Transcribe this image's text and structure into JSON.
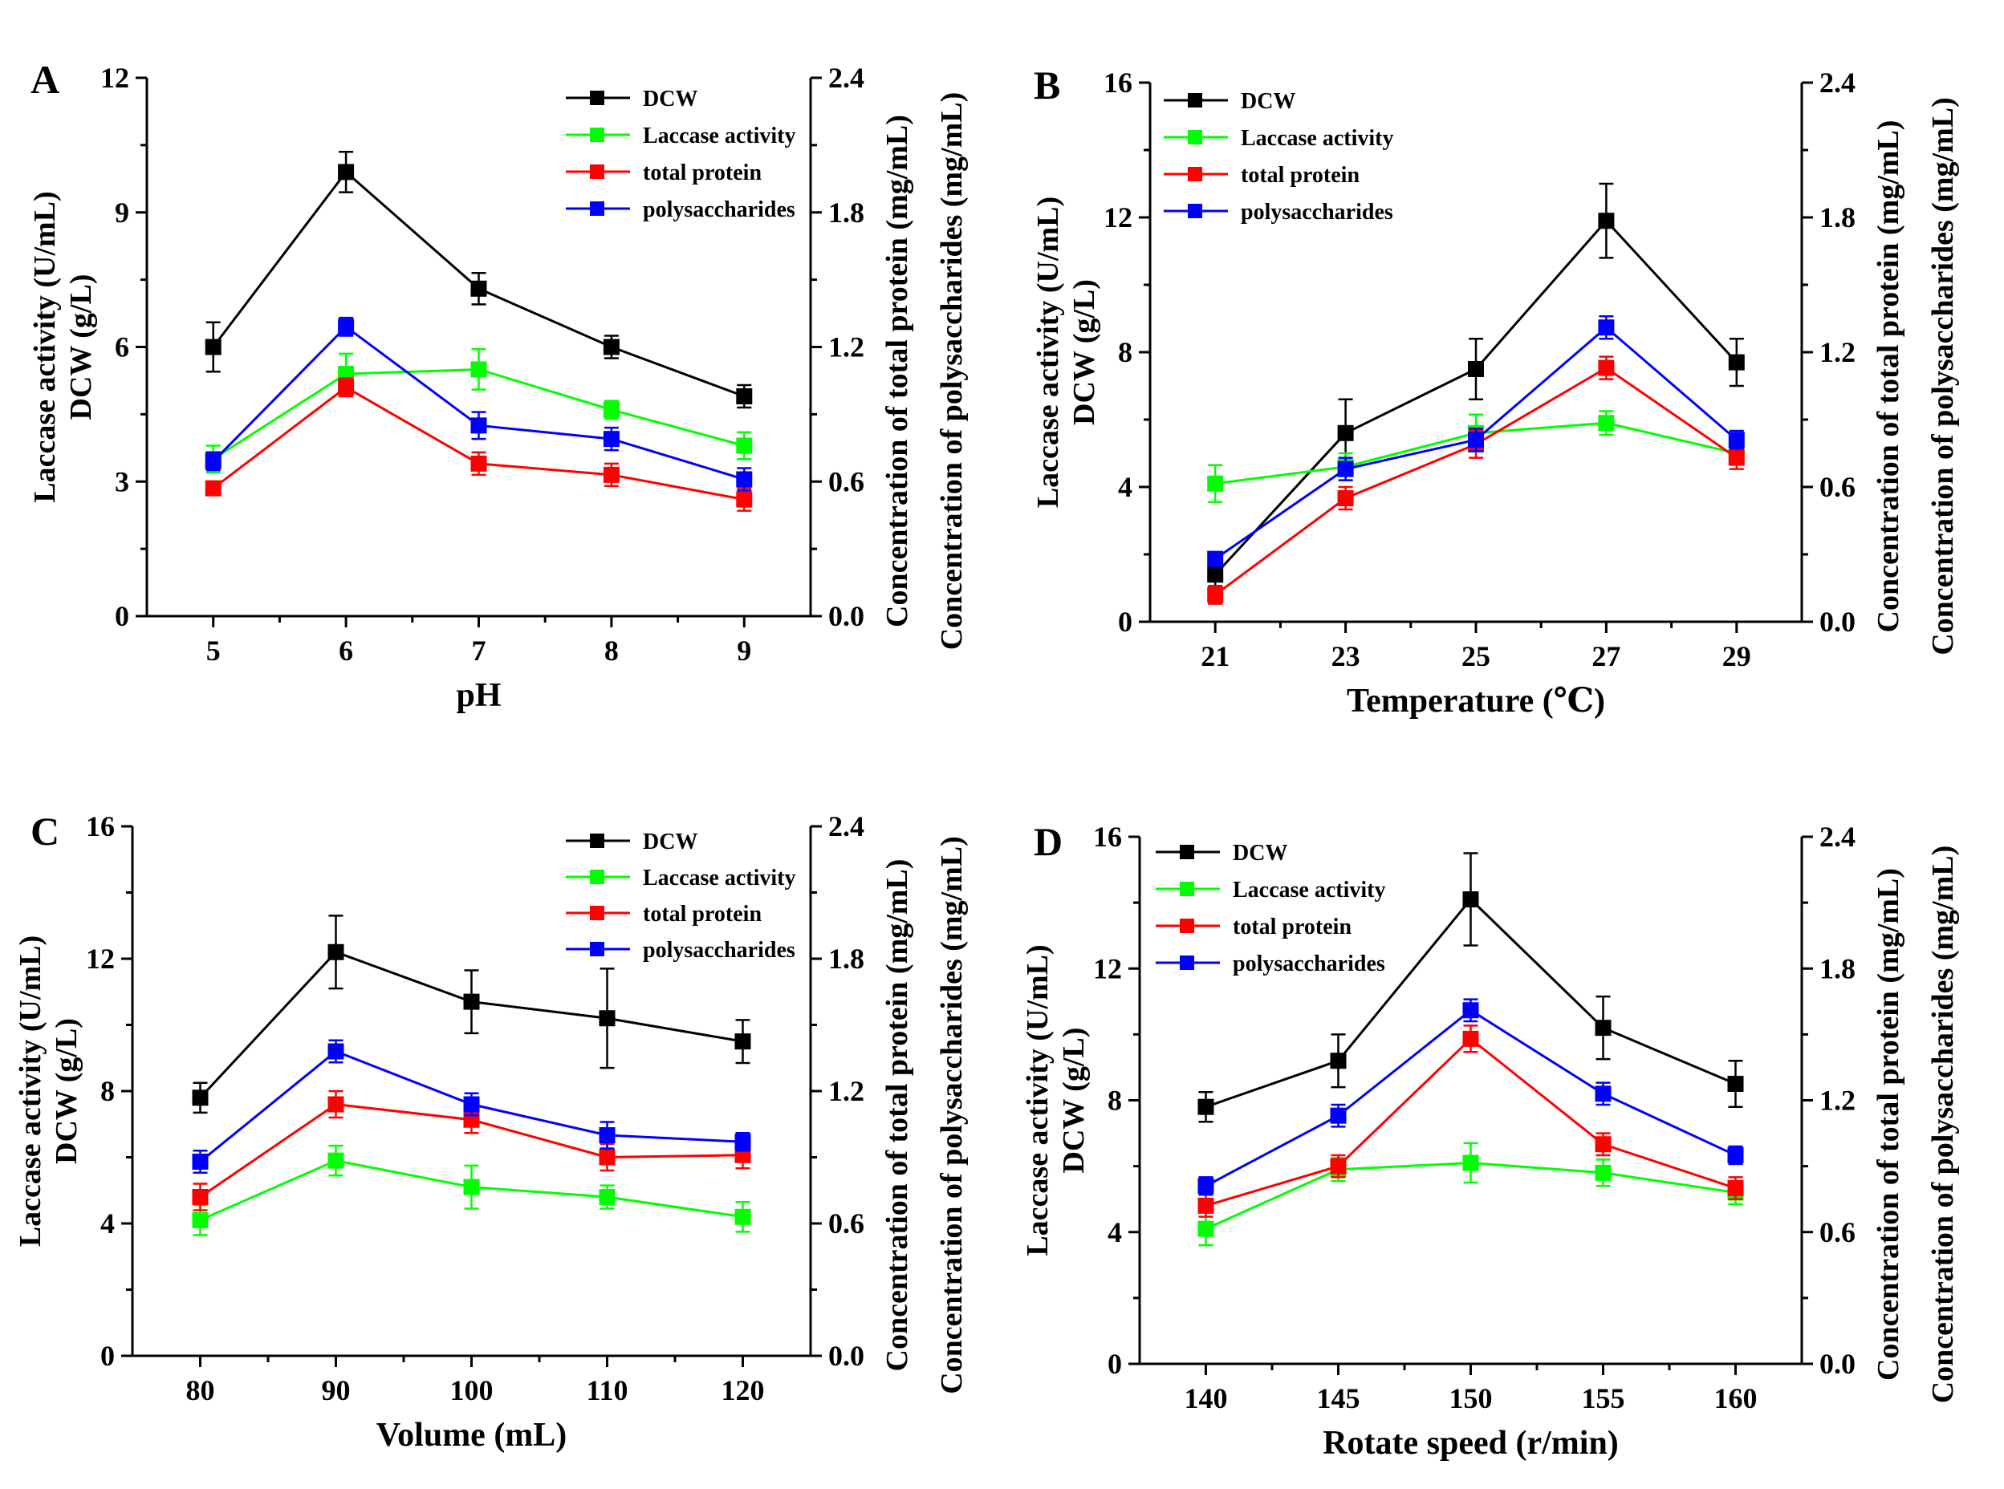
{
  "series_meta": [
    {
      "key": "dcw",
      "name": "DCW",
      "color": "#000000"
    },
    {
      "key": "laccase",
      "name": "Laccase activity",
      "color": "#00ff00"
    },
    {
      "key": "protein",
      "name": "total protein",
      "color": "#ff0000"
    },
    {
      "key": "poly",
      "name": "polysaccharides",
      "color": "#0000ff"
    }
  ],
  "chart_data": [
    {
      "type": "line",
      "panel": "A",
      "xlabel": "pH",
      "ylabel_left": [
        "Laccase activity (U/mL)",
        "DCW (g/L)"
      ],
      "ylabel_right": [
        "Concentration of total protein (mg/mL)",
        "Concentration of polysaccharides (mg/mL)"
      ],
      "x": [
        5,
        6,
        7,
        8,
        9
      ],
      "x_ticks": [
        "5",
        "6",
        "7",
        "8",
        "9"
      ],
      "xlim": [
        4.5,
        9.5
      ],
      "ylim_left": [
        0,
        12
      ],
      "y_ticks_left": [
        "0",
        "3",
        "6",
        "9",
        "12"
      ],
      "ylim_right": [
        0,
        2.4
      ],
      "y_ticks_right": [
        "0.0",
        "0.6",
        "1.2",
        "1.8",
        "2.4"
      ],
      "legend": "top-right",
      "series": [
        {
          "name": "DCW",
          "axis": "left",
          "values": [
            6.0,
            9.9,
            7.3,
            6.0,
            4.9
          ],
          "errors": [
            0.55,
            0.45,
            0.35,
            0.25,
            0.25
          ]
        },
        {
          "name": "Laccase activity",
          "axis": "left",
          "values": [
            3.5,
            5.4,
            5.5,
            4.6,
            3.8
          ],
          "errors": [
            0.3,
            0.45,
            0.45,
            0.2,
            0.3
          ]
        },
        {
          "name": "total protein",
          "axis": "right",
          "values": [
            0.57,
            1.02,
            0.68,
            0.63,
            0.52
          ],
          "errors": [
            0.03,
            0.04,
            0.05,
            0.05,
            0.05
          ]
        },
        {
          "name": "polysaccharides",
          "axis": "right",
          "values": [
            0.69,
            1.29,
            0.85,
            0.79,
            0.61
          ],
          "errors": [
            0.04,
            0.04,
            0.06,
            0.05,
            0.05
          ]
        }
      ]
    },
    {
      "type": "line",
      "panel": "B",
      "xlabel": "Temperature (℃)",
      "ylabel_left": [
        "Laccase activity (U/mL)",
        "DCW (g/L)"
      ],
      "ylabel_right": [
        "Concentration of total protein (mg/mL)",
        "Concentration of polysaccharides (mg/mL)"
      ],
      "x": [
        21,
        23,
        25,
        27,
        29
      ],
      "x_ticks": [
        "21",
        "23",
        "25",
        "27",
        "29"
      ],
      "xlim": [
        20,
        30
      ],
      "ylim_left": [
        0,
        16
      ],
      "y_ticks_left": [
        "0",
        "4",
        "8",
        "12",
        "16"
      ],
      "ylim_right": [
        0,
        2.4
      ],
      "y_ticks_right": [
        "0.0",
        "0.6",
        "1.2",
        "1.8",
        "2.4"
      ],
      "legend": "top-left",
      "series": [
        {
          "name": "DCW",
          "axis": "left",
          "values": [
            1.4,
            5.6,
            7.5,
            11.9,
            7.7
          ],
          "errors": [
            0.5,
            1.0,
            0.9,
            1.1,
            0.7
          ]
        },
        {
          "name": "Laccase activity",
          "axis": "left",
          "values": [
            4.1,
            4.6,
            5.6,
            5.9,
            5.0
          ],
          "errors": [
            0.55,
            0.4,
            0.55,
            0.35,
            0.25
          ]
        },
        {
          "name": "total protein",
          "axis": "right",
          "values": [
            0.12,
            0.55,
            0.79,
            1.13,
            0.73
          ],
          "errors": [
            0.04,
            0.05,
            0.06,
            0.05,
            0.05
          ]
        },
        {
          "name": "polysaccharides",
          "axis": "right",
          "values": [
            0.28,
            0.68,
            0.81,
            1.31,
            0.81
          ],
          "errors": [
            0.03,
            0.05,
            0.05,
            0.05,
            0.04
          ]
        }
      ]
    },
    {
      "type": "line",
      "panel": "C",
      "xlabel": "Volume (mL)",
      "ylabel_left": [
        "Laccase activity (U/mL)",
        "DCW (g/L)"
      ],
      "ylabel_right": [
        "Concentration of total protein (mg/mL)",
        "Concentration of polysaccharides (mg/mL)"
      ],
      "x": [
        80,
        90,
        100,
        110,
        120
      ],
      "x_ticks": [
        "80",
        "90",
        "100",
        "110",
        "120"
      ],
      "xlim": [
        75,
        125
      ],
      "ylim_left": [
        0,
        16
      ],
      "y_ticks_left": [
        "0",
        "4",
        "8",
        "12",
        "16"
      ],
      "ylim_right": [
        0,
        2.4
      ],
      "y_ticks_right": [
        "0.0",
        "0.6",
        "1.2",
        "1.8",
        "2.4"
      ],
      "legend": "top-right",
      "series": [
        {
          "name": "DCW",
          "axis": "left",
          "values": [
            7.8,
            12.2,
            10.7,
            10.2,
            9.5
          ],
          "errors": [
            0.45,
            1.1,
            0.95,
            1.5,
            0.65
          ]
        },
        {
          "name": "Laccase activity",
          "axis": "left",
          "values": [
            4.1,
            5.9,
            5.1,
            4.8,
            4.2
          ],
          "errors": [
            0.45,
            0.45,
            0.65,
            0.35,
            0.45
          ]
        },
        {
          "name": "total protein",
          "axis": "right",
          "values": [
            0.72,
            1.14,
            1.07,
            0.9,
            0.91
          ],
          "errors": [
            0.06,
            0.06,
            0.06,
            0.06,
            0.06
          ]
        },
        {
          "name": "polysaccharides",
          "axis": "right",
          "values": [
            0.88,
            1.38,
            1.14,
            1.0,
            0.97
          ],
          "errors": [
            0.05,
            0.05,
            0.05,
            0.06,
            0.04
          ]
        }
      ]
    },
    {
      "type": "line",
      "panel": "D",
      "xlabel": "Rotate speed (r/min)",
      "ylabel_left": [
        "Laccase activity (U/mL)",
        "DCW (g/L)"
      ],
      "ylabel_right": [
        "Concentration of total protein (mg/mL)",
        "Concentration of polysaccharides (mg/mL)"
      ],
      "x": [
        140,
        145,
        150,
        155,
        160
      ],
      "x_ticks": [
        "140",
        "145",
        "150",
        "155",
        "160"
      ],
      "xlim": [
        137.5,
        162.5
      ],
      "ylim_left": [
        0,
        16
      ],
      "y_ticks_left": [
        "0",
        "4",
        "8",
        "12",
        "16"
      ],
      "ylim_right": [
        0,
        2.4
      ],
      "y_ticks_right": [
        "0.0",
        "0.6",
        "1.2",
        "1.8",
        "2.4"
      ],
      "legend": "top-left",
      "series": [
        {
          "name": "DCW",
          "axis": "left",
          "values": [
            7.8,
            9.2,
            14.1,
            10.2,
            8.5
          ],
          "errors": [
            0.45,
            0.8,
            1.4,
            0.95,
            0.7
          ]
        },
        {
          "name": "Laccase activity",
          "axis": "left",
          "values": [
            4.1,
            5.9,
            6.1,
            5.8,
            5.2
          ],
          "errors": [
            0.5,
            0.35,
            0.6,
            0.4,
            0.35
          ]
        },
        {
          "name": "total protein",
          "axis": "right",
          "values": [
            0.72,
            0.9,
            1.48,
            1.0,
            0.8
          ],
          "errors": [
            0.05,
            0.05,
            0.06,
            0.05,
            0.05
          ]
        },
        {
          "name": "polysaccharides",
          "axis": "right",
          "values": [
            0.81,
            1.13,
            1.61,
            1.23,
            0.95
          ],
          "errors": [
            0.04,
            0.05,
            0.05,
            0.05,
            0.04
          ]
        }
      ]
    }
  ]
}
